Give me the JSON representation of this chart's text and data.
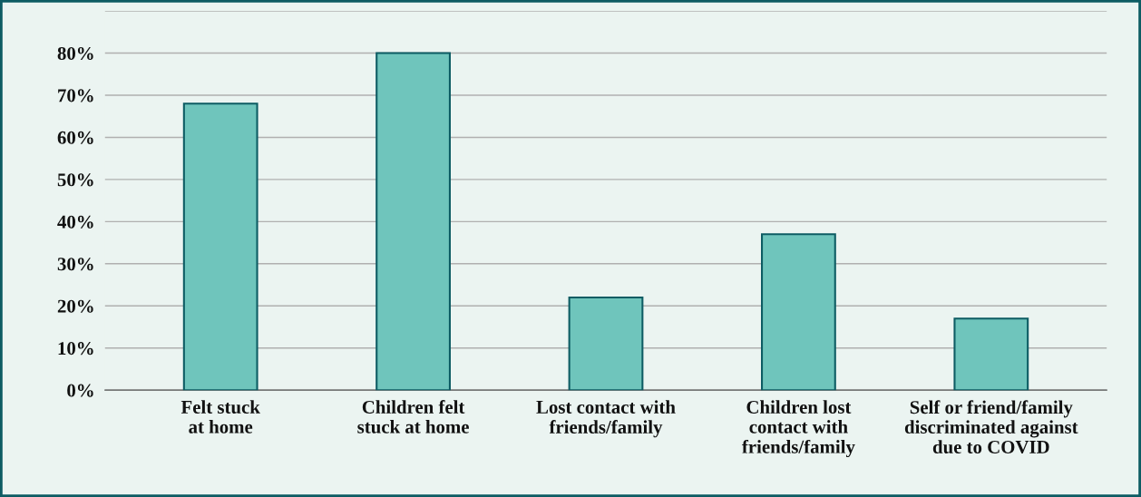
{
  "chart_data": {
    "type": "bar",
    "categories": [
      "Felt stuck\nat home",
      "Children felt\nstuck at home",
      "Lost contact with\nfriends/family",
      "Children lost\ncontact with\nfriends/family",
      "Self or friend/family\ndiscriminated against\ndue to COVID"
    ],
    "values": [
      68,
      80,
      22,
      37,
      17
    ],
    "color": "#6fc5bc",
    "ylim": [
      0,
      90
    ],
    "yticks": [
      {
        "value": 0,
        "label": "0%"
      },
      {
        "value": 10,
        "label": "10%"
      },
      {
        "value": 20,
        "label": "20%"
      },
      {
        "value": 30,
        "label": "30%"
      },
      {
        "value": 40,
        "label": "40%"
      },
      {
        "value": 50,
        "label": "50%"
      },
      {
        "value": 60,
        "label": "60%"
      },
      {
        "value": 70,
        "label": "70%"
      },
      {
        "value": 80,
        "label": "80%"
      },
      {
        "value": 90,
        "label": null
      }
    ],
    "grid": "y"
  }
}
